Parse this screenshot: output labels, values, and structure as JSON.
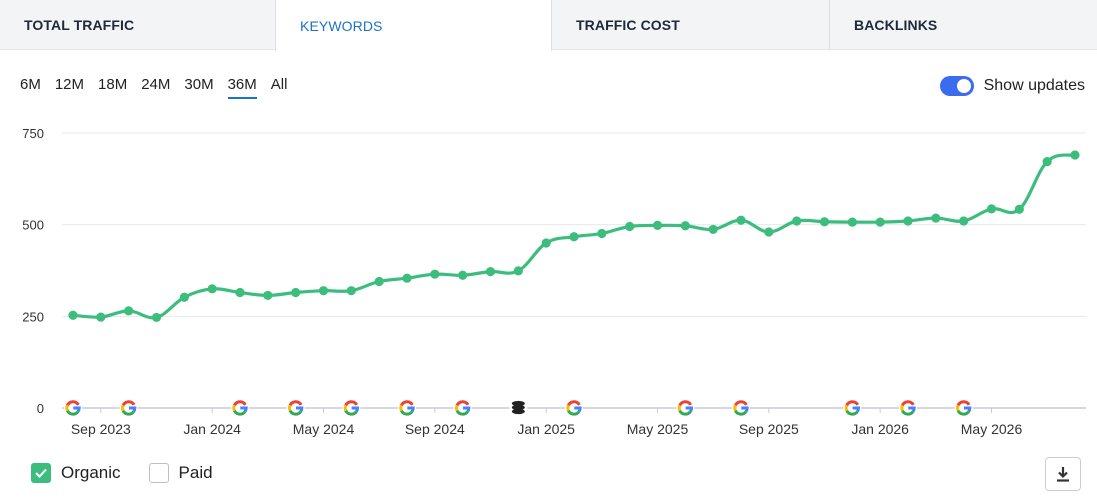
{
  "tabs": [
    {
      "label": "TOTAL TRAFFIC",
      "active": false
    },
    {
      "label": "KEYWORDS",
      "active": true
    },
    {
      "label": "TRAFFIC COST",
      "active": false
    },
    {
      "label": "BACKLINKS",
      "active": false
    }
  ],
  "ranges": [
    "6M",
    "12M",
    "18M",
    "24M",
    "30M",
    "36M",
    "All"
  ],
  "active_range": "36M",
  "toggle": {
    "label": "Show updates",
    "on": true
  },
  "legend": [
    {
      "label": "Organic",
      "checked": true
    },
    {
      "label": "Paid",
      "checked": false
    }
  ],
  "colors": {
    "organic": "#3dbd7d",
    "accent": "#1a73c8",
    "toggle": "#3b6cf0"
  },
  "icons": {
    "download": "download-icon",
    "update": "google-icon",
    "database": "database-icon"
  },
  "chart_data": {
    "type": "line",
    "title": "",
    "xlabel": "",
    "ylabel": "",
    "ylim": [
      0,
      750
    ],
    "yticks": [
      0,
      250,
      500,
      750
    ],
    "grid": true,
    "x_tick_labels": [
      "Sep 2023",
      "Jan 2024",
      "May 2024",
      "Sep 2024",
      "Jan 2025",
      "May 2025",
      "Sep 2025",
      "Jan 2026",
      "May 2026"
    ],
    "x": [
      "2023-08",
      "2023-09",
      "2023-10",
      "2023-11",
      "2023-12",
      "2024-01",
      "2024-02",
      "2024-03",
      "2024-04",
      "2024-05",
      "2024-06",
      "2024-07",
      "2024-08",
      "2024-09",
      "2024-10",
      "2024-11",
      "2024-12",
      "2025-01",
      "2025-02",
      "2025-03",
      "2025-04",
      "2025-05",
      "2025-06",
      "2025-07",
      "2025-08",
      "2025-09",
      "2025-10",
      "2025-11",
      "2025-12",
      "2026-01",
      "2026-02",
      "2026-03",
      "2026-04",
      "2026-05",
      "2026-06",
      "2026-07",
      "2026-08"
    ],
    "series": [
      {
        "name": "Organic",
        "values": [
          253,
          248,
          265,
          247,
          302,
          325,
          315,
          307,
          315,
          320,
          320,
          345,
          354,
          365,
          362,
          372,
          374,
          450,
          467,
          476,
          495,
          498,
          497,
          487,
          512,
          480,
          510,
          508,
          507,
          507,
          510,
          518,
          510,
          543,
          542,
          672,
          690
        ]
      }
    ],
    "update_markers": [
      {
        "date": "2023-08",
        "type": "google"
      },
      {
        "date": "2023-10",
        "type": "google"
      },
      {
        "date": "2024-02",
        "type": "google"
      },
      {
        "date": "2024-04",
        "type": "google"
      },
      {
        "date": "2024-06",
        "type": "google"
      },
      {
        "date": "2024-08",
        "type": "google"
      },
      {
        "date": "2024-10",
        "type": "google"
      },
      {
        "date": "2024-12",
        "type": "database"
      },
      {
        "date": "2025-02",
        "type": "google"
      },
      {
        "date": "2025-06",
        "type": "google"
      },
      {
        "date": "2025-08",
        "type": "google"
      },
      {
        "date": "2025-12",
        "type": "google"
      },
      {
        "date": "2026-02",
        "type": "google"
      },
      {
        "date": "2026-04",
        "type": "google"
      }
    ]
  }
}
